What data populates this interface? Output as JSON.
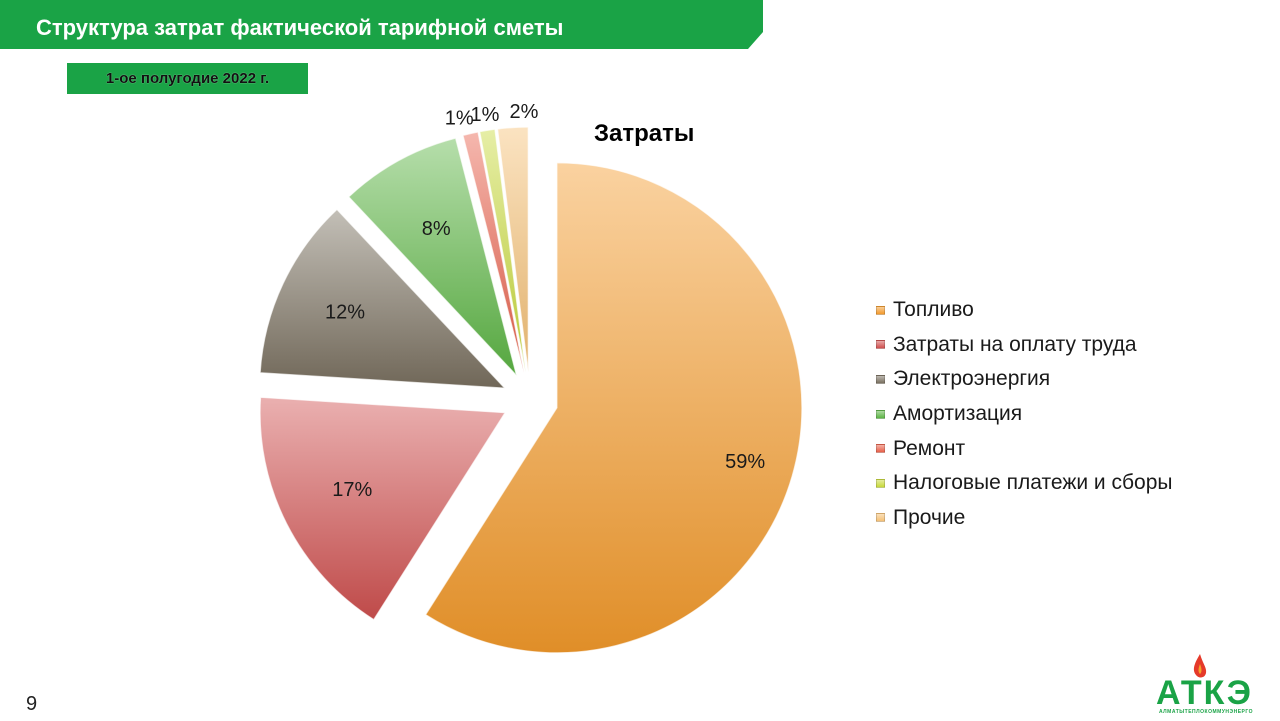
{
  "slide": {
    "title": "Структура затрат фактической тарифной сметы",
    "period": "1-ое полугодие 2022 г.",
    "page_number": "9",
    "colors": {
      "title_bar": "#1aa346",
      "badge": "#1aa346"
    }
  },
  "logo": {
    "text": "АТКЭ",
    "subtext": "АЛМАТЫТЕПЛОКОММУНЭНЕРГО",
    "icon": "flame-drop-icon"
  },
  "chart_data": {
    "type": "pie",
    "title": "Затраты",
    "legend_position": "right",
    "slices": [
      {
        "name": "Топливо",
        "value": 59,
        "label": "59%",
        "color": "#f39a2c"
      },
      {
        "name": "Затраты на оплату труда",
        "value": 17,
        "label": "17%",
        "color": "#d0504f"
      },
      {
        "name": "Электроэнергия",
        "value": 12,
        "label": "12%",
        "color": "#7a7060"
      },
      {
        "name": "Амортизация",
        "value": 8,
        "label": "8%",
        "color": "#5cb545"
      },
      {
        "name": "Ремонт",
        "value": 1,
        "label": "1%",
        "color": "#e8604a"
      },
      {
        "name": "Налоговые платежи и сборы",
        "value": 1,
        "label": "1%",
        "color": "#c8d93a"
      },
      {
        "name": "Прочие",
        "value": 2,
        "label": "2%",
        "color": "#f5c075"
      }
    ]
  }
}
